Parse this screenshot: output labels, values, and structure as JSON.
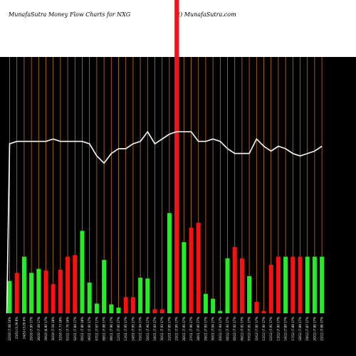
{
  "header": {
    "title": "MunafaSutra  Money  Flow  Charts for  NXG",
    "site": "() MunafaSutra.com"
  },
  "colors": {
    "background": "#000000",
    "grid": "#c8741a",
    "up": "#22ee22",
    "down": "#ff1010",
    "line": "#ffffff"
  },
  "chart_data": {
    "type": "bar",
    "ylim": [
      0,
      1
    ],
    "grid": "vertical",
    "categories": [
      "22/10 (7.08 16%",
      "23/10 (3.39 8%",
      "24/10 (3.09 6%",
      "25/10 (7.90 17%",
      "26/10 (7.09 17%",
      "29/10 (6.90 17%",
      "30/10 (7.54 18%",
      "31/10 (7.73 18%",
      "01/11 (7.76 16%",
      "02/11 (7.84 17%",
      "05/11 (7.86 18%",
      "06/11 (7.91 17%",
      "07/11 (7.97 17%",
      "08/11 (7.98 17%",
      "09/11 (7.96 17%",
      "12/11 (7.95 17%",
      "13/11 (7.95 17%",
      "14/11 (7.95 17%",
      "15/11 (7.94 17%",
      "16/11 (7.94 17%",
      "19/11 (7.93 17%",
      "20/11 (7.93 17%",
      "21/11 (7.95 17%",
      "23/11 (7.95 17%",
      "26/11 (7.95 17%",
      "27/11 (7.96 17%",
      "28/11 (7.95 17%",
      "29/11 (7.95 17%",
      "30/11 (7.94 17%",
      "03/12 (7.94 17%",
      "04/12 (7.92 17%",
      "05/12 (7.92 17%",
      "06/12 (7.91 17%",
      "07/12 (7.91 17%",
      "10/12 (7.91 17%",
      "11/12 (7.90 17%",
      "12/12 (7.91 17%",
      "13/12 (7.90 17%",
      "14/12 (7.89 17%",
      "17/12 (7.88 17%",
      "18/12 (7.88 17%",
      "19/12 (7.87 17%",
      "20/12 (7.86 17%",
      "21/12 (7.86 17%"
    ],
    "series": [
      {
        "kind": "money_flow_bars",
        "values": [
          0.2,
          0.25,
          0.35,
          0.25,
          0.275,
          0.265,
          0.18,
          0.27,
          0.35,
          0.36,
          0.51,
          0.19,
          0.06,
          0.33,
          0.055,
          0.035,
          0.1,
          0.1,
          0.22,
          0.215,
          0.025,
          0.025,
          0.62,
          1.0,
          0.44,
          0.53,
          0.56,
          0.12,
          0.09,
          0.015,
          0.34,
          0.41,
          0.34,
          0.23,
          0.07,
          0.015,
          0.3,
          0.35,
          0.35,
          0.35,
          0.35,
          0.35,
          0.35,
          0.35
        ],
        "direction": [
          "up",
          "down",
          "up",
          "up",
          "up",
          "down",
          "down",
          "down",
          "down",
          "down",
          "up",
          "up",
          "up",
          "up",
          "up",
          "up",
          "down",
          "down",
          "up",
          "up",
          "down",
          "down",
          "up",
          "down",
          "up",
          "down",
          "down",
          "up",
          "up",
          "up",
          "up",
          "down",
          "down",
          "up",
          "down",
          "down",
          "down",
          "down",
          "up",
          "down",
          "down",
          "up",
          "up",
          "up"
        ]
      },
      {
        "kind": "price_line",
        "values": [
          0.7,
          0.71,
          0.71,
          0.71,
          0.71,
          0.71,
          0.72,
          0.71,
          0.71,
          0.71,
          0.71,
          0.7,
          0.65,
          0.62,
          0.66,
          0.68,
          0.68,
          0.7,
          0.71,
          0.75,
          0.7,
          0.72,
          0.74,
          0.75,
          0.75,
          0.75,
          0.71,
          0.71,
          0.72,
          0.71,
          0.68,
          0.66,
          0.66,
          0.66,
          0.72,
          0.69,
          0.67,
          0.69,
          0.68,
          0.66,
          0.65,
          0.66,
          0.67,
          0.69
        ]
      }
    ]
  }
}
